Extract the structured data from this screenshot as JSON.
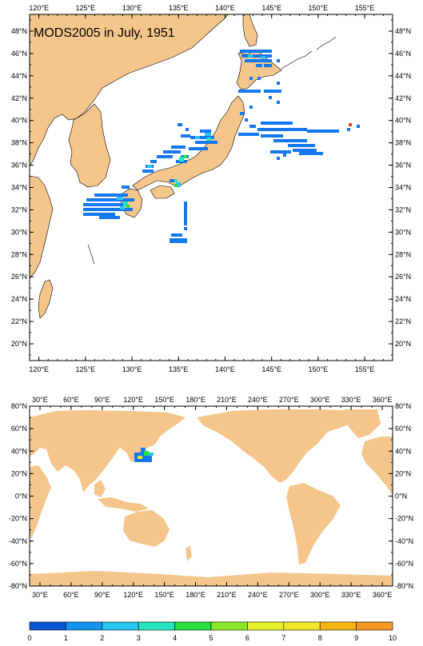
{
  "map_top": {
    "title": "MODS2005 in July, 1951",
    "lon_labels": [
      "120°E",
      "125°E",
      "130°E",
      "135°E",
      "140°E",
      "145°E",
      "150°E",
      "155°E"
    ],
    "lat_labels": [
      "48°N",
      "46°N",
      "44°N",
      "42°N",
      "40°N",
      "38°N",
      "36°N",
      "34°N",
      "32°N",
      "30°N",
      "28°N",
      "26°N",
      "24°N",
      "22°N",
      "20°N"
    ],
    "lon_range": [
      119,
      158
    ],
    "lat_range": [
      18.5,
      49.5
    ]
  },
  "map_bottom": {
    "lon_labels": [
      "30°E",
      "60°E",
      "90°E",
      "120°E",
      "150°E",
      "180°E",
      "210°E",
      "240°E",
      "270°E",
      "300°E",
      "330°E",
      "360°E"
    ],
    "lat_labels": [
      "80°N",
      "60°N",
      "40°N",
      "20°N",
      "0°N",
      "-20°N",
      "-40°N",
      "-60°N",
      "-80°N"
    ],
    "lon_range": [
      20,
      370
    ],
    "lat_range": [
      -80,
      80
    ]
  },
  "colorbar": {
    "labels": [
      "0",
      "1",
      "2",
      "3",
      "4",
      "5",
      "6",
      "7",
      "8",
      "9",
      "10"
    ],
    "colors": [
      "#0a56d8",
      "#1496f0",
      "#28c6f0",
      "#24e6c0",
      "#28e040",
      "#8ce628",
      "#e6f028",
      "#f0e628",
      "#f5b40f",
      "#f5961e",
      "#e6461e"
    ]
  },
  "colors": {
    "land": "#f5c68c",
    "ocean": "#ffffff"
  }
}
